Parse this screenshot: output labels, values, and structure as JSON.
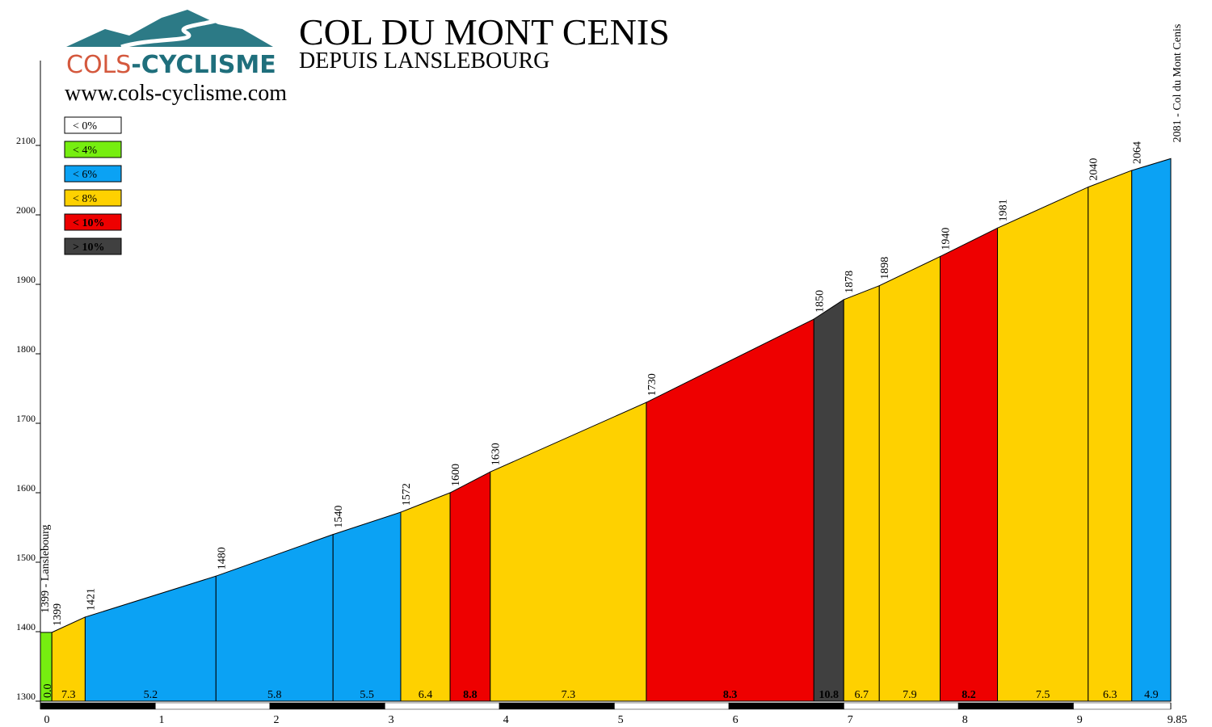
{
  "header": {
    "logo_parts": [
      "COLS",
      "-CYCLISME"
    ],
    "url": "www.cols-cyclisme.com"
  },
  "chart_data": {
    "type": "area",
    "title": "COL DU MONT CENIS",
    "subtitle": "DEPUIS LANSLEBOURG",
    "legend": [
      {
        "label": "< 0%",
        "color": "#ffffff"
      },
      {
        "label": "< 4%",
        "color": "#76ee10"
      },
      {
        "label": "< 6%",
        "color": "#0ba2f4"
      },
      {
        "label": "< 8%",
        "color": "#fed100"
      },
      {
        "label": "< 10%",
        "color": "#ee0000"
      },
      {
        "label": "> 10%",
        "color": "#404040"
      }
    ],
    "x": [
      0,
      0.1,
      0.39,
      1.53,
      2.55,
      3.14,
      3.57,
      3.92,
      5.28,
      6.74,
      7.0,
      7.31,
      7.84,
      8.34,
      9.13,
      9.51,
      9.85
    ],
    "elevations": [
      1399,
      1399,
      1421,
      1480,
      1540,
      1572,
      1600,
      1630,
      1730,
      1850,
      1878,
      1898,
      1940,
      1981,
      2040,
      2064,
      2081
    ],
    "gradients": [
      0.0,
      7.3,
      5.2,
      5.8,
      5.5,
      6.4,
      8.8,
      7.3,
      8.3,
      10.8,
      6.7,
      7.9,
      8.2,
      7.5,
      6.3,
      4.9
    ],
    "gradient_labels": [
      "0.0",
      "7.3",
      "5.2",
      "5.8",
      "5.5",
      "6.4",
      "8.8",
      "7.3",
      "8.3",
      "10.8",
      "6.7",
      "7.9",
      "8.2",
      "7.5",
      "6.3",
      "4.9"
    ],
    "colors": [
      "#76ee10",
      "#fed100",
      "#0ba2f4",
      "#0ba2f4",
      "#0ba2f4",
      "#fed100",
      "#ee0000",
      "#fed100",
      "#ee0000",
      "#404040",
      "#fed100",
      "#fed100",
      "#ee0000",
      "#fed100",
      "#fed100",
      "#0ba2f4"
    ],
    "place_labels": [
      "1399 - Lanslebourg",
      "2081 - Col du Mont Cenis"
    ],
    "xlim": [
      0,
      9.85
    ],
    "xticks": [
      0,
      1,
      2,
      3,
      4,
      5,
      6,
      7,
      8,
      9,
      9.85
    ],
    "ylim": [
      1300,
      2200
    ],
    "yticks": [
      1300,
      1400,
      1500,
      1600,
      1700,
      1800,
      1900,
      2000,
      2100
    ]
  }
}
